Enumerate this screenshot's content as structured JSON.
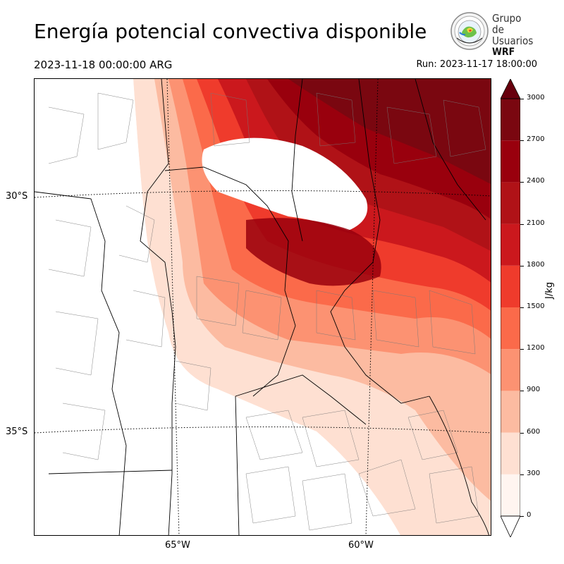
{
  "title": "Energía potencial convectiva disponible",
  "valid_time": "2023-11-18 00:00:00 ARG",
  "run_time": "Run: 2023-11-17 18:00:00",
  "logo": {
    "line1": "Grupo de",
    "line2": "Usuarios",
    "line3": "WRF"
  },
  "map": {
    "lat_labels": [
      "30°S",
      "35°S"
    ],
    "lon_labels": [
      "65°W",
      "60°W"
    ]
  },
  "colorbar": {
    "unit": "J/kg",
    "ticks": [
      "0",
      "300",
      "600",
      "900",
      "1200",
      "1500",
      "1800",
      "2100",
      "2400",
      "2700",
      "3000"
    ],
    "colors": [
      "#fff5f0",
      "#fee0d2",
      "#fcbba1",
      "#fc9272",
      "#fb6a4a",
      "#ef3b2c",
      "#cb181d",
      "#b01217",
      "#99000d",
      "#7a0710"
    ]
  }
}
